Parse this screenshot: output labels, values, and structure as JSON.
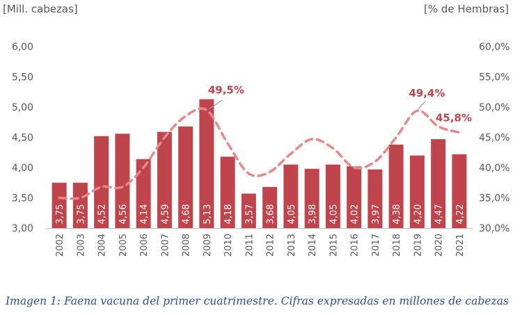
{
  "chart_data": {
    "type": "bar",
    "left_axis_label": "[Mill. cabezas]",
    "right_axis_label": "[% de Hembras]",
    "categories": [
      "2002",
      "2003",
      "2004",
      "2005",
      "2006",
      "2007",
      "2008",
      "2009",
      "2010",
      "2011",
      "2012",
      "2013",
      "2014",
      "2015",
      "2016",
      "2017",
      "2018",
      "2019",
      "2020",
      "2021"
    ],
    "bar_series": {
      "values": [
        3.75,
        3.75,
        4.52,
        4.56,
        4.14,
        4.59,
        4.68,
        5.13,
        4.18,
        3.57,
        3.68,
        4.05,
        3.98,
        4.05,
        4.02,
        3.97,
        4.38,
        4.2,
        4.47,
        4.22
      ],
      "value_labels": [
        "3,75",
        "3,75",
        "4,52",
        "4,56",
        "4,14",
        "4,59",
        "4,68",
        "5,13",
        "4,18",
        "3,57",
        "3,68",
        "4,05",
        "3,98",
        "4,05",
        "4,02",
        "3,97",
        "4,38",
        "4,20",
        "4,47",
        "4,22"
      ],
      "color": "#c0444c"
    },
    "line_series": {
      "values": [
        35.0,
        35.0,
        36.8,
        36.8,
        40.0,
        45.0,
        48.5,
        49.5,
        44.0,
        39.0,
        39.3,
        42.3,
        44.7,
        43.2,
        40.0,
        41.0,
        45.0,
        49.4,
        46.8,
        45.8
      ],
      "color": "#e58a8a",
      "style": "dashed"
    },
    "annotations": [
      {
        "text": "49,5%",
        "category": "2009",
        "value": 49.5
      },
      {
        "text": "49,4%",
        "category": "2019",
        "value": 49.4
      },
      {
        "text": "45,8%",
        "category": "2021",
        "value": 45.8
      }
    ],
    "y_left": {
      "min": 3.0,
      "max": 6.0,
      "ticks": [
        "3,00",
        "3,50",
        "4,00",
        "4,50",
        "5,00",
        "5,50",
        "6,00"
      ]
    },
    "y_right": {
      "min": 30.0,
      "max": 60.0,
      "ticks": [
        "30,0%",
        "35,0%",
        "40,0%",
        "45,0%",
        "50,0%",
        "55,0%",
        "60,0%"
      ]
    },
    "grid": false,
    "annotation_color": "#c0444c",
    "axis_text_color": "#555555"
  },
  "caption": "Imagen 1: Faena vacuna del primer cuatrimestre. Cifras expresadas en millones de cabezas"
}
